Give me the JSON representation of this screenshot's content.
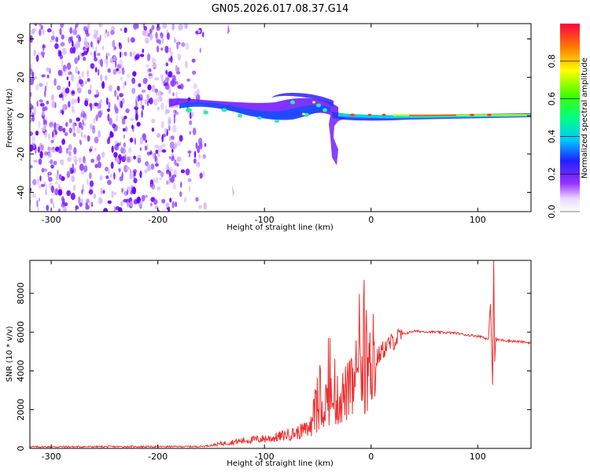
{
  "title": "GN05.2026.017.08.37.G14",
  "colors": {
    "snr_line": "#ee3030",
    "axes": "#000000",
    "background": "#ffffff"
  },
  "chart_data": [
    {
      "type": "heatmap",
      "title": "GN05.2026.017.08.37.G14",
      "xlabel": "Height of straight line (km)",
      "ylabel": "Frequency (Hz)",
      "xlim": [
        -320,
        150
      ],
      "ylim": [
        -50,
        48
      ],
      "xticks": [
        -300,
        -200,
        -100,
        0,
        100
      ],
      "yticks": [
        -40,
        -20,
        0,
        20,
        40
      ],
      "grid": false,
      "description_series": [
        {
          "name": "noise region",
          "x_range": [
            -320,
            -155
          ],
          "freq_range": [
            -50,
            48
          ]
        },
        {
          "name": "signal trace",
          "x": [
            -185,
            -150,
            -120,
            -100,
            -80,
            -60,
            -40,
            -30,
            0,
            50,
            100,
            150
          ],
          "freq": [
            2,
            1,
            -1,
            -2,
            -3,
            6,
            3,
            -1,
            0,
            1,
            1,
            1
          ]
        }
      ],
      "colorbar": {
        "label": "Normalized spectral amplitude",
        "range": [
          0,
          1
        ],
        "ticks": [
          "0.0",
          "0.2",
          "0.4",
          "0.6",
          "0.8"
        ],
        "tick_values": [
          0,
          0.2,
          0.4,
          0.6,
          0.8
        ]
      }
    },
    {
      "type": "line",
      "xlabel": "Height of straight line (km)",
      "ylabel": "SNR (10 * v/v)",
      "xlim": [
        -320,
        150
      ],
      "ylim": [
        0,
        9700
      ],
      "xticks": [
        -300,
        -200,
        -100,
        0,
        100
      ],
      "yticks": [
        0,
        2000,
        4000,
        6000,
        8000
      ],
      "grid": false,
      "series": [
        {
          "name": "SNR",
          "x": [
            -320,
            -250,
            -200,
            -160,
            -150,
            -140,
            -120,
            -100,
            -90,
            -80,
            -70,
            -60,
            -55,
            -50,
            -45,
            -40,
            -35,
            -30,
            -25,
            -20,
            -15,
            -10,
            -5,
            0,
            5,
            10,
            15,
            20,
            25,
            30,
            40,
            60,
            80,
            90,
            100,
            105,
            110,
            112,
            114,
            115,
            116,
            117,
            118,
            120,
            130,
            140,
            150
          ],
          "y": [
            80,
            90,
            90,
            100,
            150,
            250,
            400,
            500,
            550,
            700,
            800,
            1000,
            1200,
            1600,
            2200,
            2600,
            2300,
            2500,
            2800,
            3000,
            3200,
            3600,
            3900,
            4200,
            4600,
            5000,
            5300,
            5500,
            5700,
            5900,
            6050,
            6000,
            5950,
            5850,
            5800,
            5750,
            5600,
            7500,
            3300,
            9700,
            4500,
            5700,
            5600,
            5600,
            5550,
            5500,
            5450
          ]
        }
      ]
    }
  ]
}
